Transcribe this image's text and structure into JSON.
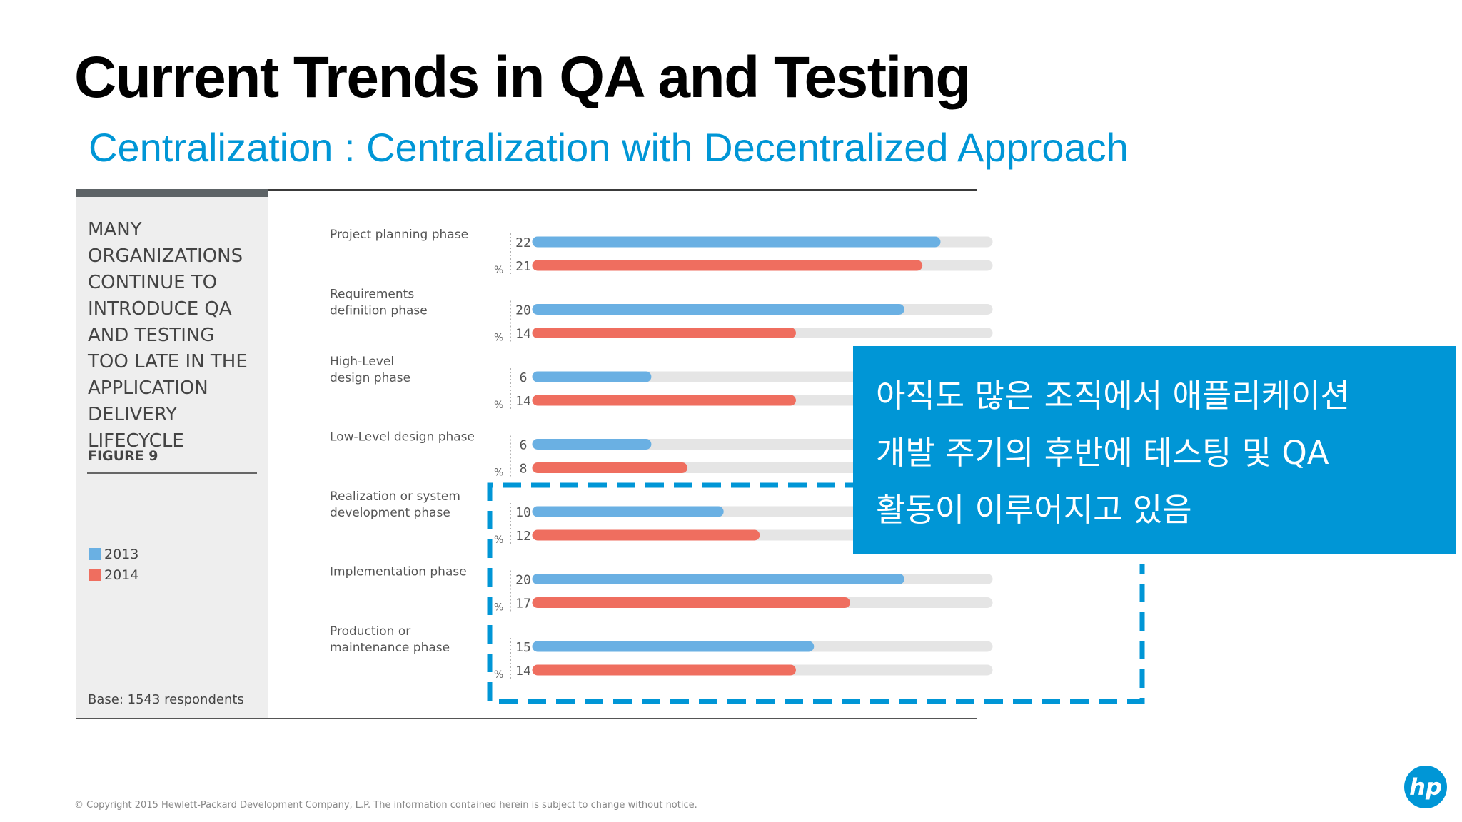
{
  "slide": {
    "title": "Current Trends in QA and Testing",
    "subtitle": "Centralization : Centralization with Decentralized Approach",
    "copyright": "© Copyright 2015 Hewlett-Packard Development Company, L.P.  The information contained herein is subject to change without notice.",
    "logo_icon": "hp-logo-icon",
    "accent_color": "#0096d6"
  },
  "figure": {
    "heading": "MANY ORGANIZATIONS CONTINUE TO INTRODUCE QA AND TESTING TOO LATE IN THE APPLICATION DELIVERY LIFECYCLE",
    "figure_label": "FIGURE 9",
    "base_note": "Base: 1543 respondents"
  },
  "callout": {
    "text": "아직도 많은 조직에서 애플리케이션\n개발 주기의 후반에 테스팅 및 QA\n활동이 이루어지고 있음"
  },
  "chart_data": {
    "type": "bar",
    "orientation": "horizontal",
    "unit": "%",
    "categories": [
      "Project planning phase",
      "Requirements definition phase",
      "High-Level design phase",
      "Low-Level design phase",
      "Realization or system development phase",
      "Implementation phase",
      "Production or maintenance phase"
    ],
    "category_lines": [
      [
        "Project planning phase"
      ],
      [
        "Requirements",
        "definition phase"
      ],
      [
        "High-Level",
        "design phase"
      ],
      [
        "Low-Level design phase"
      ],
      [
        "Realization or system",
        "development phase"
      ],
      [
        "Implementation phase"
      ],
      [
        "Production or",
        "maintenance phase"
      ]
    ],
    "series": [
      {
        "name": "2013",
        "color": "#6ab0e3",
        "values": [
          22,
          20,
          6,
          6,
          10,
          20,
          15
        ]
      },
      {
        "name": "2014",
        "color": "#ef6e5f",
        "values": [
          21,
          14,
          14,
          8,
          12,
          17,
          14
        ]
      }
    ],
    "xlim": [
      0,
      25
    ],
    "track_color": "#e5e5e5",
    "legend_position": "left-sidebar",
    "highlight": {
      "categories": [
        "Realization or system development phase",
        "Implementation phase",
        "Production or maintenance phase"
      ],
      "style": "dashed-box",
      "color": "#0096d6"
    }
  }
}
